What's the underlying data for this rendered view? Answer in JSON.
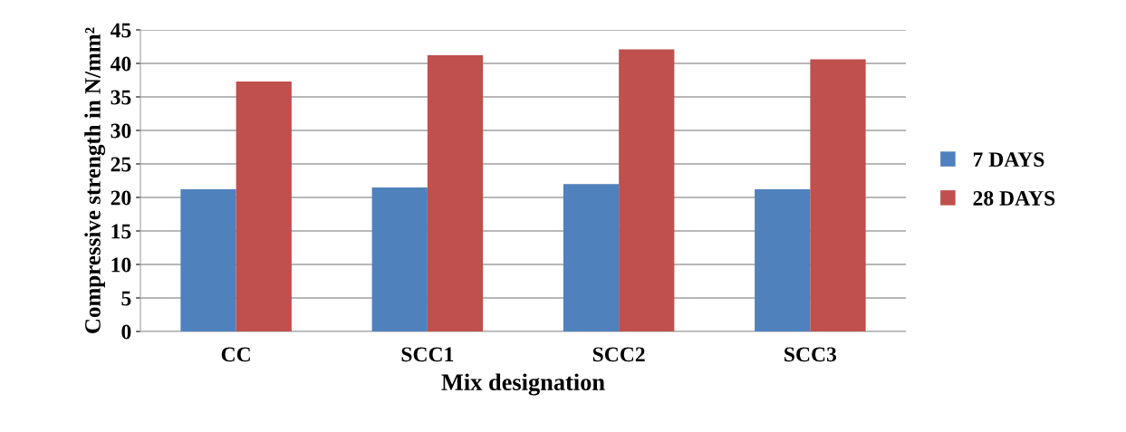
{
  "chart_data": {
    "type": "bar",
    "xlabel": "Mix designation",
    "ylabel": "Compressive strength in N/mm²",
    "categories": [
      "CC",
      "SCC1",
      "SCC2",
      "SCC3"
    ],
    "series": [
      {
        "name": "7 DAYS",
        "color": "#4f81bd",
        "values": [
          21.2,
          21.5,
          22.0,
          21.2
        ]
      },
      {
        "name": "28 DAYS",
        "color": "#c0504d",
        "values": [
          37.3,
          41.2,
          42.1,
          40.6
        ]
      }
    ],
    "ylim": [
      0,
      45
    ],
    "yticks": [
      0,
      5,
      10,
      15,
      20,
      25,
      30,
      35,
      40,
      45
    ],
    "grid": "y",
    "legend": "right"
  }
}
